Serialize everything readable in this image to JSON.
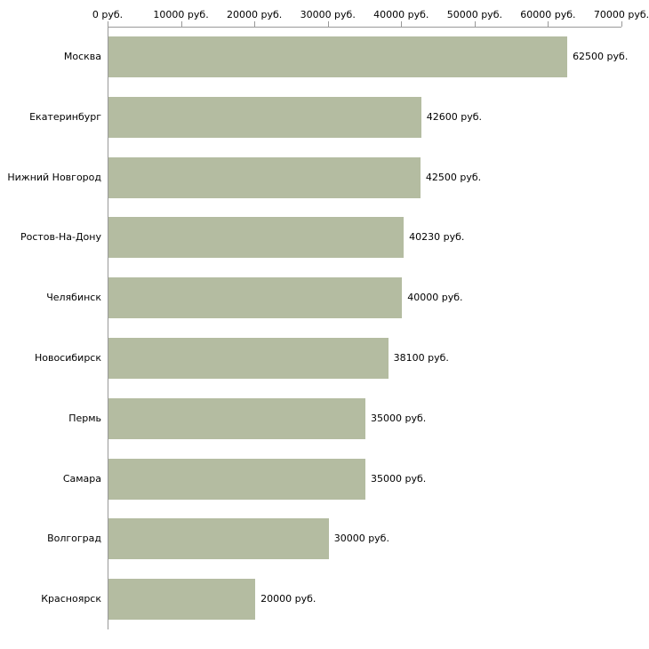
{
  "chart_data": {
    "type": "bar",
    "orientation": "horizontal",
    "title": "",
    "xlabel": "",
    "ylabel": "",
    "categories": [
      "Москва",
      "Екатеринбург",
      "Нижний Новгород",
      "Ростов-На-Дону",
      "Челябинск",
      "Новосибирск",
      "Пермь",
      "Самара",
      "Волгоград",
      "Красноярск"
    ],
    "values": [
      62500,
      42600,
      42500,
      40230,
      40000,
      38100,
      35000,
      35000,
      30000,
      20000
    ],
    "value_labels": [
      "62500 руб.",
      "42600 руб.",
      "42500 руб.",
      "40230 руб.",
      "40000 руб.",
      "38100 руб.",
      "35000 руб.",
      "35000 руб.",
      "30000 руб.",
      "20000 руб."
    ],
    "x_ticks": [
      "0 руб.",
      "10000 руб.",
      "20000 руб.",
      "30000 руб.",
      "40000 руб.",
      "50000 руб.",
      "60000 руб.",
      "70000 руб."
    ],
    "x_tick_values": [
      0,
      10000,
      20000,
      30000,
      40000,
      50000,
      60000,
      70000
    ],
    "xlim": [
      0,
      70000
    ],
    "grid": false,
    "legend": false,
    "bar_color": "#b4bca1",
    "axis_color": "#999999",
    "text_color": "#000000"
  }
}
